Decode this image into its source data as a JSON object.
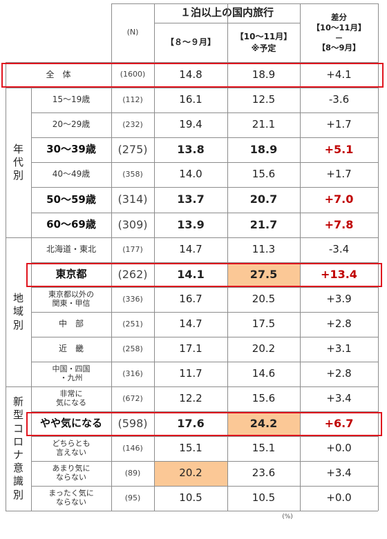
{
  "header": {
    "n_label": "(N)",
    "group_title": "１泊以上の国内旅行",
    "col_past": "【８～９月】",
    "col_plan_line1": "【10～11月】",
    "col_plan_line2": "※予定",
    "diff_line1": "差分",
    "diff_line2": "【10～11月】",
    "diff_line3": "－",
    "diff_line4": "【8～9月】"
  },
  "categories": {
    "age": [
      "年",
      "代",
      "別"
    ],
    "region": [
      "地",
      "域",
      "別"
    ],
    "corona": [
      "新",
      "型",
      "コ",
      "ロ",
      "ナ",
      "意",
      "識",
      "別"
    ]
  },
  "rows": [
    {
      "label": [
        "全　体"
      ],
      "n": "(1600)",
      "past": "14.8",
      "plan": "18.9",
      "diff": "+4.1",
      "emph": false
    },
    {
      "label": [
        "15～19歳"
      ],
      "n": "(112)",
      "past": "16.1",
      "plan": "12.5",
      "diff": "-3.6",
      "emph": false
    },
    {
      "label": [
        "20～29歳"
      ],
      "n": "(232)",
      "past": "19.4",
      "plan": "21.1",
      "diff": "+1.7",
      "emph": false
    },
    {
      "label": [
        "30～39歳"
      ],
      "n": "(275)",
      "past": "13.8",
      "plan": "18.9",
      "diff": "+5.1",
      "emph": true
    },
    {
      "label": [
        "40～49歳"
      ],
      "n": "(358)",
      "past": "14.0",
      "plan": "15.6",
      "diff": "+1.7",
      "emph": false
    },
    {
      "label": [
        "50～59歳"
      ],
      "n": "(314)",
      "past": "13.7",
      "plan": "20.7",
      "diff": "+7.0",
      "emph": true
    },
    {
      "label": [
        "60～69歳"
      ],
      "n": "(309)",
      "past": "13.9",
      "plan": "21.7",
      "diff": "+7.8",
      "emph": true
    },
    {
      "label": [
        "北海道・東北"
      ],
      "n": "(177)",
      "past": "14.7",
      "plan": "11.3",
      "diff": "-3.4",
      "emph": false
    },
    {
      "label": [
        "東京都"
      ],
      "n": "(262)",
      "past": "14.1",
      "plan": "27.5",
      "diff": "+13.4",
      "emph": true
    },
    {
      "label": [
        "東京都以外の",
        "関東・甲信"
      ],
      "n": "(336)",
      "past": "16.7",
      "plan": "20.5",
      "diff": "+3.9",
      "emph": false
    },
    {
      "label": [
        "中　部"
      ],
      "n": "(251)",
      "past": "14.7",
      "plan": "17.5",
      "diff": "+2.8",
      "emph": false
    },
    {
      "label": [
        "近　畿"
      ],
      "n": "(258)",
      "past": "17.1",
      "plan": "20.2",
      "diff": "+3.1",
      "emph": false
    },
    {
      "label": [
        "中国・四国",
        "・九州"
      ],
      "n": "(316)",
      "past": "11.7",
      "plan": "14.6",
      "diff": "+2.8",
      "emph": false
    },
    {
      "label": [
        "非常に",
        "気になる"
      ],
      "n": "(672)",
      "past": "12.2",
      "plan": "15.6",
      "diff": "+3.4",
      "emph": false
    },
    {
      "label": [
        "やや気になる"
      ],
      "n": "(598)",
      "past": "17.6",
      "plan": "24.2",
      "diff": "+6.7",
      "emph": true
    },
    {
      "label": [
        "どちらとも",
        "言えない"
      ],
      "n": "(146)",
      "past": "15.1",
      "plan": "15.1",
      "diff": "+0.0",
      "emph": false
    },
    {
      "label": [
        "あまり気に",
        "ならない"
      ],
      "n": "(89)",
      "past": "20.2",
      "plan": "23.6",
      "diff": "+3.4",
      "emph": false
    },
    {
      "label": [
        "まったく気に",
        "ならない"
      ],
      "n": "(95)",
      "past": "10.5",
      "plan": "10.5",
      "diff": "+0.0",
      "emph": false
    }
  ],
  "highlighted_cells": [
    {
      "row": 8,
      "col": "plan"
    },
    {
      "row": 14,
      "col": "plan"
    },
    {
      "row": 16,
      "col": "past"
    }
  ],
  "boxed_rows": [
    0,
    8,
    14
  ],
  "footnote": "(%)",
  "colors": {
    "highlight_fill": "#fbc896",
    "box_border": "#e0141e",
    "emphasis_red": "#c00000"
  }
}
